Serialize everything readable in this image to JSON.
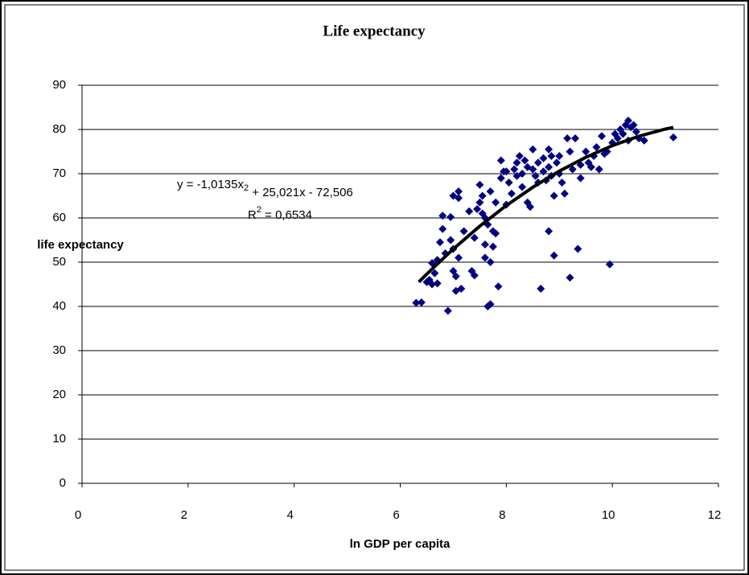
{
  "chart_data": {
    "type": "scatter",
    "title": "Life expectancy",
    "x_label": "ln GDP per capita",
    "y_label": "life expectancy",
    "xlim": [
      0,
      12
    ],
    "xticks": [
      0,
      2,
      4,
      6,
      8,
      10,
      12
    ],
    "ylim": [
      0,
      90
    ],
    "yticks": [
      0,
      10,
      20,
      30,
      40,
      50,
      60,
      70,
      80,
      90
    ],
    "grid": true,
    "color": "#000080",
    "x": [
      6.3,
      6.4,
      6.5,
      6.55,
      6.6,
      6.6,
      6.65,
      6.7,
      6.7,
      6.75,
      6.8,
      6.8,
      6.85,
      6.9,
      6.95,
      6.95,
      7.0,
      7.0,
      7.0,
      7.05,
      7.05,
      7.1,
      7.1,
      7.1,
      7.15,
      7.2,
      7.3,
      7.35,
      7.4,
      7.4,
      7.45,
      7.5,
      7.5,
      7.55,
      7.55,
      7.6,
      7.6,
      7.6,
      7.65,
      7.65,
      7.7,
      7.7,
      7.7,
      7.75,
      7.75,
      7.8,
      7.8,
      7.85,
      7.9,
      7.9,
      7.95,
      8.0,
      8.0,
      8.05,
      8.1,
      8.15,
      8.2,
      8.2,
      8.25,
      8.3,
      8.3,
      8.35,
      8.4,
      8.4,
      8.45,
      8.5,
      8.5,
      8.55,
      8.6,
      8.6,
      8.65,
      8.7,
      8.7,
      8.75,
      8.8,
      8.8,
      8.8,
      8.85,
      8.85,
      8.9,
      8.9,
      8.95,
      9.0,
      9.0,
      9.05,
      9.1,
      9.15,
      9.2,
      9.2,
      9.25,
      9.3,
      9.35,
      9.4,
      9.4,
      9.5,
      9.55,
      9.6,
      9.65,
      9.7,
      9.75,
      9.8,
      9.85,
      9.9,
      9.95,
      10.0,
      10.05,
      10.1,
      10.15,
      10.2,
      10.25,
      10.3,
      10.3,
      10.35,
      10.4,
      10.45,
      10.5,
      10.6,
      11.15
    ],
    "values": [
      40.8,
      40.9,
      45.5,
      46,
      45,
      49.8,
      47.5,
      50.5,
      45.2,
      54.5,
      57.5,
      60.5,
      52,
      39,
      55,
      60.2,
      53,
      48,
      65,
      43.5,
      46.8,
      51,
      64.5,
      66,
      44,
      57,
      61.5,
      48,
      47,
      55.5,
      62,
      67.5,
      63.5,
      65,
      61,
      60,
      54,
      51,
      40,
      58.5,
      66,
      50,
      40.5,
      57,
      53.5,
      63.5,
      56.5,
      44.5,
      73,
      69,
      70.5,
      63,
      70.5,
      68,
      65.5,
      71,
      72.5,
      69.5,
      74,
      70,
      67,
      73,
      71.5,
      63.5,
      62.5,
      75.5,
      71,
      69.5,
      68,
      72.5,
      44,
      70.5,
      73.5,
      68.5,
      75.5,
      71.5,
      57,
      74,
      69.5,
      65,
      51.5,
      72.5,
      70,
      74,
      68,
      65.5,
      78,
      75,
      46.5,
      71,
      78,
      53,
      72,
      69,
      75,
      72.5,
      71.5,
      74,
      76,
      71,
      78.5,
      74.5,
      75,
      49.5,
      77,
      79,
      78,
      80,
      79,
      81,
      82,
      77.5,
      80.5,
      81,
      79.5,
      78,
      77.5,
      78.2
    ],
    "trendline": {
      "color": "#000000",
      "x": [
        6.35,
        6.5,
        7,
        7.5,
        8,
        8.5,
        9,
        9.5,
        10,
        10.5,
        11,
        11.15
      ],
      "values": [
        45.51,
        47.31,
        52.98,
        58.14,
        62.8,
        66.94,
        70.59,
        73.72,
        76.35,
        78.48,
        80.09,
        80.47
      ],
      "equation": "y = -1,0135x",
      "equation_sup": "2",
      "equation_rest": " + 25,021x - 72,506",
      "r2": "R",
      "r2_sup": "2",
      "r2_rest": " = 0,6534"
    }
  }
}
